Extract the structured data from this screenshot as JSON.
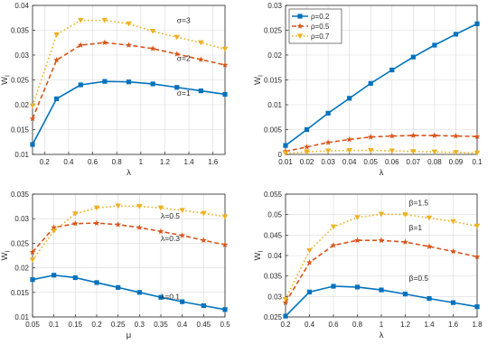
{
  "colors": {
    "blue": "#0072BD",
    "orange": "#D95319",
    "yellow": "#EDB120",
    "grid": "#d9d9d9",
    "axis": "#262626"
  },
  "chart_data": [
    {
      "type": "line",
      "panel": "top-left",
      "xlabel": "λ",
      "ylabel": "W_I",
      "xlim": [
        0.1,
        1.7
      ],
      "ylim": [
        0.01,
        0.04
      ],
      "xticks": [
        "0.2",
        "0.4",
        "0.6",
        "0.8",
        "1",
        "1.2",
        "1.4",
        "1.6"
      ],
      "yticks": [
        "0.01",
        "0.015",
        "0.02",
        "0.025",
        "0.03",
        "0.035",
        "0.04"
      ],
      "grid": true,
      "x": [
        0.1,
        0.3,
        0.5,
        0.7,
        0.9,
        1.1,
        1.3,
        1.5,
        1.7
      ],
      "series": [
        {
          "name": "σ=1",
          "color": "blue",
          "marker": "square",
          "dash": "solid",
          "values": [
            0.012,
            0.0212,
            0.024,
            0.0247,
            0.0246,
            0.0242,
            0.0235,
            0.0228,
            0.0221
          ]
        },
        {
          "name": "σ=2",
          "color": "orange",
          "marker": "star",
          "dash": "dashed",
          "values": [
            0.0172,
            0.029,
            0.032,
            0.0325,
            0.032,
            0.0313,
            0.0302,
            0.0291,
            0.028
          ]
        },
        {
          "name": "σ=3",
          "color": "yellow",
          "marker": "triangle-down",
          "dash": "dotted",
          "values": [
            0.0198,
            0.0341,
            0.037,
            0.037,
            0.0363,
            0.0348,
            0.0336,
            0.0325,
            0.0312
          ]
        }
      ],
      "annotations": [
        {
          "text": "σ=3",
          "x": 1.3,
          "y": 0.0365
        },
        {
          "text": "σ=2",
          "x": 1.3,
          "y": 0.0288
        },
        {
          "text": "σ=1",
          "x": 1.3,
          "y": 0.0218
        }
      ]
    },
    {
      "type": "line",
      "panel": "top-right",
      "xlabel": "λ",
      "ylabel": "W_I",
      "xlim": [
        0.01,
        0.1
      ],
      "ylim": [
        0,
        0.03
      ],
      "xticks": [
        "0.01",
        "0.02",
        "0.03",
        "0.04",
        "0.05",
        "0.06",
        "0.07",
        "0.08",
        "0.09",
        "0.1"
      ],
      "yticks": [
        "0",
        "0.005",
        "0.01",
        "0.015",
        "0.02",
        "0.025",
        "0.03"
      ],
      "grid": true,
      "legend_placement": "top-left",
      "x": [
        0.01,
        0.02,
        0.03,
        0.04,
        0.05,
        0.06,
        0.07,
        0.08,
        0.09,
        0.1
      ],
      "series": [
        {
          "name": "ρ=0.2",
          "color": "blue",
          "marker": "square",
          "dash": "solid",
          "values": [
            0.0018,
            0.005,
            0.0083,
            0.0113,
            0.0143,
            0.017,
            0.0196,
            0.022,
            0.0242,
            0.0263
          ]
        },
        {
          "name": "ρ=0.5",
          "color": "orange",
          "marker": "star",
          "dash": "dashed",
          "values": [
            0.0006,
            0.0015,
            0.0024,
            0.003,
            0.0035,
            0.0037,
            0.0038,
            0.0038,
            0.0037,
            0.0036
          ]
        },
        {
          "name": "ρ=0.7",
          "color": "yellow",
          "marker": "triangle-down",
          "dash": "dotted",
          "values": [
            0.0002,
            0.0005,
            0.0007,
            0.0008,
            0.0008,
            0.0007,
            0.0006,
            0.0005,
            0.0004,
            0.0003
          ]
        }
      ],
      "annotations": []
    },
    {
      "type": "line",
      "panel": "bottom-left",
      "xlabel": "μ",
      "ylabel": "W_I",
      "xlim": [
        0.05,
        0.5
      ],
      "ylim": [
        0.01,
        0.035
      ],
      "xticks": [
        "0.05",
        "0.1",
        "0.15",
        "0.2",
        "0.25",
        "0.3",
        "0.35",
        "0.4",
        "0.45",
        "0.5"
      ],
      "yticks": [
        "0.01",
        "0.015",
        "0.02",
        "0.025",
        "0.03",
        "0.035"
      ],
      "grid": true,
      "x": [
        0.05,
        0.1,
        0.15,
        0.2,
        0.25,
        0.3,
        0.35,
        0.4,
        0.45,
        0.5
      ],
      "series": [
        {
          "name": "λ=0.1",
          "color": "blue",
          "marker": "square",
          "dash": "solid",
          "values": [
            0.0176,
            0.0185,
            0.018,
            0.017,
            0.016,
            0.015,
            0.014,
            0.0131,
            0.0123,
            0.0115
          ]
        },
        {
          "name": "λ=0.3",
          "color": "orange",
          "marker": "star",
          "dash": "dashed",
          "values": [
            0.0232,
            0.0282,
            0.029,
            0.0291,
            0.0288,
            0.0282,
            0.0274,
            0.0266,
            0.0256,
            0.0247
          ]
        },
        {
          "name": "λ=0.5",
          "color": "yellow",
          "marker": "triangle-down",
          "dash": "dotted",
          "values": [
            0.0216,
            0.0275,
            0.031,
            0.0322,
            0.0326,
            0.0325,
            0.0322,
            0.0317,
            0.0311,
            0.0304
          ]
        }
      ],
      "annotations": [
        {
          "text": "λ=0.5",
          "x": 0.35,
          "y": 0.03
        },
        {
          "text": "λ=0.3",
          "x": 0.35,
          "y": 0.0254
        },
        {
          "text": "λ=0.1",
          "x": 0.35,
          "y": 0.0136
        }
      ]
    },
    {
      "type": "line",
      "panel": "bottom-right",
      "xlabel": "λ",
      "ylabel": "W_I",
      "xlim": [
        0.2,
        1.8
      ],
      "ylim": [
        0.025,
        0.055
      ],
      "xticks": [
        "0.2",
        "0.4",
        "0.6",
        "0.8",
        "1",
        "1.2",
        "1.4",
        "1.6",
        "1.8"
      ],
      "yticks": [
        "0.025",
        "0.03",
        "0.035",
        "0.04",
        "0.045",
        "0.05",
        "0.055"
      ],
      "grid": true,
      "x": [
        0.2,
        0.4,
        0.6,
        0.8,
        1.0,
        1.2,
        1.4,
        1.6,
        1.8
      ],
      "series": [
        {
          "name": "β=0.5",
          "color": "blue",
          "marker": "square",
          "dash": "solid",
          "values": [
            0.0252,
            0.0311,
            0.0325,
            0.0323,
            0.0316,
            0.0306,
            0.0295,
            0.0285,
            0.0275
          ]
        },
        {
          "name": "β=1",
          "color": "orange",
          "marker": "star",
          "dash": "dashed",
          "values": [
            0.0285,
            0.0383,
            0.0425,
            0.0437,
            0.0437,
            0.0433,
            0.0422,
            0.041,
            0.0397
          ]
        },
        {
          "name": "β=1.5",
          "color": "yellow",
          "marker": "triangle-down",
          "dash": "dotted",
          "values": [
            0.0293,
            0.0412,
            0.047,
            0.0493,
            0.0501,
            0.05,
            0.0492,
            0.0483,
            0.0472
          ]
        }
      ],
      "annotations": [
        {
          "text": "β=1.5",
          "x": 1.23,
          "y": 0.0522
        },
        {
          "text": "β=1",
          "x": 1.23,
          "y": 0.0462
        },
        {
          "text": "β=0.5",
          "x": 1.23,
          "y": 0.0338
        }
      ]
    }
  ]
}
